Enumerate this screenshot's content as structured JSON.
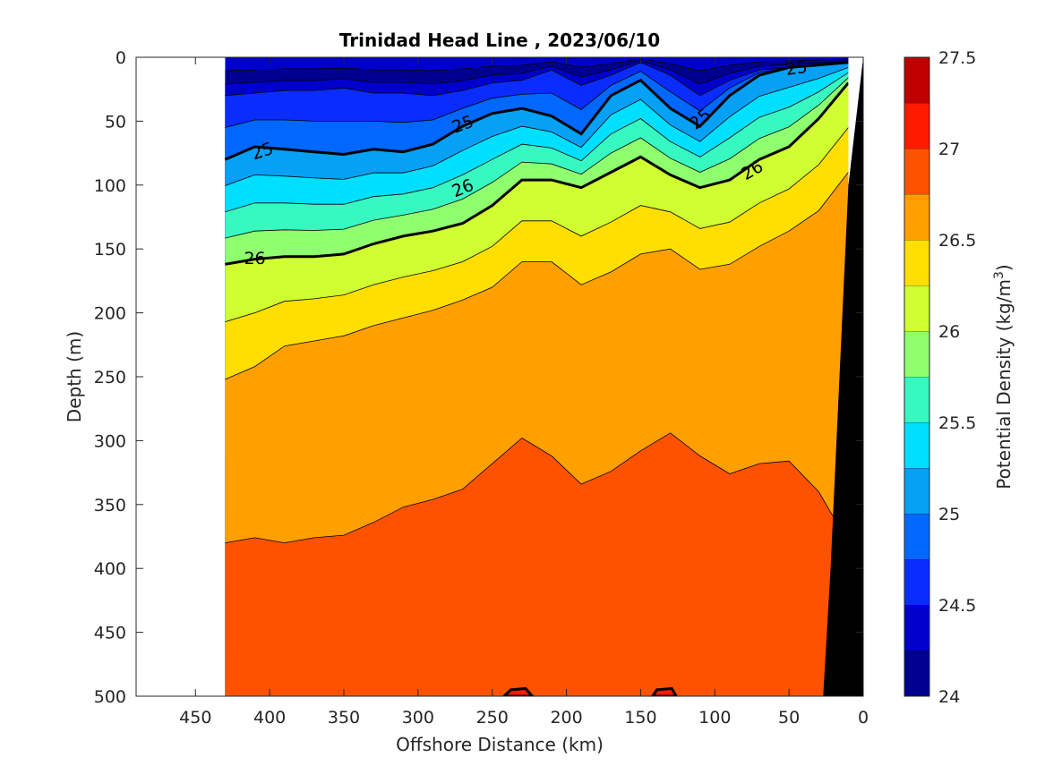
{
  "chart_data": {
    "type": "contour",
    "title": "Trinidad Head Line , 2023/06/10",
    "xlabel": "Offshore Distance (km)",
    "ylabel": "Depth (m)",
    "colorbar_label": "Potential Density (kg/m",
    "colorbar_label_sup": "3",
    "colorbar_label_end": ")",
    "xlim": [
      490,
      0
    ],
    "ylim": [
      500,
      0
    ],
    "x_reversed": true,
    "y_reversed": true,
    "xticks": [
      "450",
      "400",
      "350",
      "300",
      "250",
      "200",
      "150",
      "100",
      "50",
      "0"
    ],
    "yticks": [
      "0",
      "50",
      "100",
      "150",
      "200",
      "250",
      "300",
      "350",
      "400",
      "450",
      "500"
    ],
    "colorbar_ticks": [
      "27.5",
      "27",
      "26.5",
      "26",
      "25.5",
      "25",
      "24.5",
      "24"
    ],
    "colorbar_range": [
      24,
      27.5
    ],
    "contour_levels": [
      24,
      24.25,
      24.5,
      24.75,
      25,
      25.25,
      25.5,
      25.75,
      26,
      26.25,
      26.5,
      26.75,
      27,
      27.25,
      27.5
    ],
    "band_colors": [
      "#00008f",
      "#0000cc",
      "#0b2cff",
      "#0068ff",
      "#06a0f5",
      "#00dfff",
      "#38f8c1",
      "#8fff70",
      "#cfff30",
      "#ffde00",
      "#ffa000",
      "#ff5200",
      "#ff1a00",
      "#c00000"
    ],
    "data_x_range_km": [
      430,
      0
    ],
    "surface_isopycnals": {
      "x_km": [
        430,
        410,
        390,
        370,
        350,
        330,
        310,
        290,
        270,
        250,
        230,
        210,
        190,
        170,
        150,
        130,
        110,
        90,
        70,
        50,
        30,
        10
      ],
      "depth_24_5_m": [
        30,
        28,
        26,
        26,
        24,
        28,
        28,
        30,
        26,
        20,
        18,
        10,
        22,
        14,
        4,
        14,
        30,
        18,
        10,
        8,
        6,
        4
      ],
      "depth_25_m": [
        80,
        70,
        72,
        74,
        76,
        72,
        74,
        68,
        54,
        44,
        40,
        46,
        60,
        30,
        18,
        40,
        54,
        30,
        14,
        8,
        6,
        4
      ],
      "depth_26_m": [
        162,
        158,
        156,
        156,
        154,
        146,
        140,
        136,
        130,
        116,
        96,
        96,
        102,
        90,
        78,
        92,
        102,
        96,
        80,
        70,
        48,
        20
      ],
      "depth_26_5_m": [
        252,
        242,
        226,
        222,
        218,
        210,
        204,
        198,
        190,
        180,
        160,
        160,
        178,
        168,
        154,
        150,
        166,
        162,
        148,
        136,
        120,
        90
      ],
      "depth_26_75_m": [
        380,
        376,
        380,
        376,
        374,
        364,
        352,
        346,
        338,
        318,
        298,
        312,
        334,
        324,
        308,
        294,
        312,
        326,
        318,
        316,
        340,
        380
      ]
    },
    "bottom_topography_km_at_depth": {
      "depth_m": [
        0,
        100,
        200,
        300,
        400,
        500
      ],
      "x_km": [
        0,
        10,
        14,
        18,
        22,
        27
      ]
    },
    "labeled_contours": [
      {
        "label": "25"
      },
      {
        "label": "25"
      },
      {
        "label": "25"
      },
      {
        "label": "25"
      },
      {
        "label": "26"
      },
      {
        "label": "26"
      },
      {
        "label": "26"
      }
    ]
  }
}
